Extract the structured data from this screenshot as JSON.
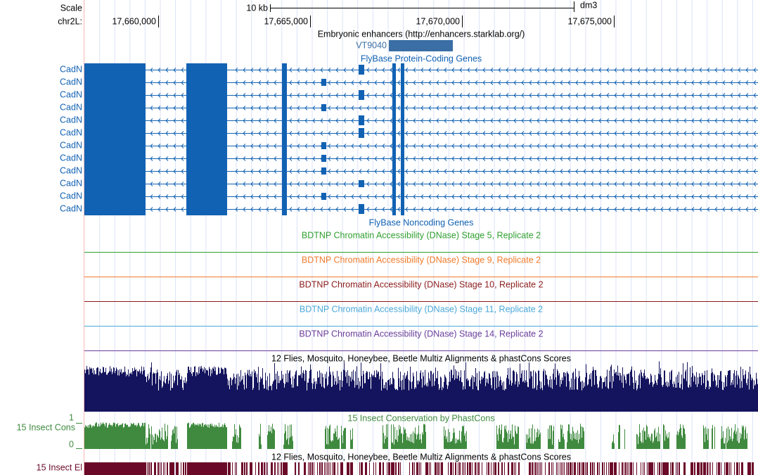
{
  "ruler": {
    "scale_label": "Scale",
    "scale_size": "10 kb",
    "assembly": "dm3",
    "chrom": "chr2L:",
    "positions": [
      "17,660,000",
      "17,665,000",
      "17,670,000",
      "17,675,000"
    ]
  },
  "tracks": {
    "enhancers": {
      "title": "Embryonic enhancers (http://enhancers.starklab.org/)",
      "items": [
        "VT9040"
      ],
      "color": "#3a6ea5"
    },
    "protein_coding": {
      "title": "FlyBase Protein-Coding Genes",
      "color": "#1262b3",
      "genes": [
        "CadN",
        "CadN",
        "CadN",
        "CadN",
        "CadN",
        "CadN",
        "CadN",
        "CadN",
        "CadN",
        "CadN",
        "CadN",
        "CadN"
      ]
    },
    "noncoding": {
      "title": "FlyBase Noncoding Genes",
      "color": "#1262b3"
    },
    "dnase": [
      {
        "title": "BDTNP Chromatin Accessibility (DNase) Stage 5, Replicate 2",
        "color": "#2f9f2f"
      },
      {
        "title": "BDTNP Chromatin Accessibility (DNase) Stage 9, Replicate 2",
        "color": "#f07a2a"
      },
      {
        "title": "BDTNP Chromatin Accessibility (DNase) Stage 10, Replicate 2",
        "color": "#8b1c1c"
      },
      {
        "title": "BDTNP Chromatin Accessibility (DNase) Stage 11, Replicate 2",
        "color": "#4aa8d8"
      },
      {
        "title": "BDTNP Chromatin Accessibility (DNase) Stage 14, Replicate 2",
        "color": "#6a3d9a"
      }
    ],
    "multiz": {
      "title": "12 Flies, Mosquito, Honeybee, Beetle Multiz Alignments & phastCons Scores",
      "color": "#14145e"
    },
    "phastcons": {
      "title": "15 Insect Conservation by PhastCons",
      "label": "15 Insect Cons",
      "max": "1",
      "min": "0",
      "color": "#3f8a3f"
    },
    "elements": {
      "title": "12 Flies, Mosquito, Honeybee, Beetle Multiz Alignments & phastCons Scores",
      "label": "15 Insect El",
      "color": "#6b0a28"
    }
  }
}
